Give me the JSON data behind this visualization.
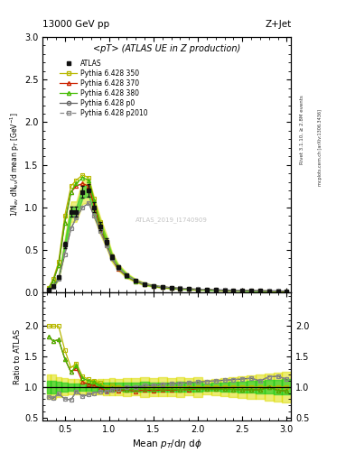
{
  "title_top": "13000 GeV pp",
  "title_right": "Z+Jet",
  "plot_title": "<pT> (ATLAS UE in Z production)",
  "xlabel": "Mean $p_T$/d$\\eta$ d$\\phi$",
  "ylabel_main": "1/N$_{ev}$ dN$_{ev}$/d mean p$_T$ [GeV$^{-1}$]",
  "ylabel_ratio": "Ratio to ATLAS",
  "right_label1": "Rivet 3.1.10, ≥ 2.8M events",
  "right_label2": "mcplots.cern.ch [arXiv:1306.3436]",
  "watermark": "ATLAS_2019_I1740909",
  "atlas_x": [
    0.32,
    0.37,
    0.43,
    0.5,
    0.57,
    0.63,
    0.7,
    0.77,
    0.83,
    0.9,
    0.97,
    1.03,
    1.1,
    1.2,
    1.3,
    1.4,
    1.5,
    1.6,
    1.7,
    1.8,
    1.9,
    2.0,
    2.1,
    2.2,
    2.3,
    2.4,
    2.5,
    2.6,
    2.7,
    2.8,
    2.9,
    3.0
  ],
  "atlas_y": [
    0.03,
    0.08,
    0.18,
    0.56,
    0.95,
    0.95,
    1.18,
    1.2,
    1.0,
    0.78,
    0.6,
    0.42,
    0.3,
    0.2,
    0.14,
    0.1,
    0.08,
    0.065,
    0.055,
    0.048,
    0.042,
    0.037,
    0.033,
    0.03,
    0.027,
    0.025,
    0.023,
    0.021,
    0.02,
    0.018,
    0.017,
    0.016
  ],
  "atlas_yerr": [
    0.003,
    0.008,
    0.015,
    0.04,
    0.06,
    0.06,
    0.07,
    0.07,
    0.06,
    0.05,
    0.04,
    0.03,
    0.02,
    0.015,
    0.01,
    0.008,
    0.006,
    0.005,
    0.004,
    0.004,
    0.003,
    0.003,
    0.002,
    0.002,
    0.002,
    0.002,
    0.002,
    0.002,
    0.002,
    0.002,
    0.002,
    0.002
  ],
  "py350_x": [
    0.32,
    0.37,
    0.43,
    0.5,
    0.57,
    0.63,
    0.7,
    0.77,
    0.83,
    0.9,
    0.97,
    1.03,
    1.1,
    1.2,
    1.3,
    1.4,
    1.5,
    1.6,
    1.7,
    1.8,
    1.9,
    2.0,
    2.1,
    2.2,
    2.3,
    2.4,
    2.5,
    2.6,
    2.7,
    2.8,
    2.9,
    3.0
  ],
  "py350_y": [
    0.06,
    0.16,
    0.36,
    0.9,
    1.25,
    1.32,
    1.38,
    1.35,
    1.1,
    0.83,
    0.6,
    0.43,
    0.3,
    0.2,
    0.14,
    0.1,
    0.08,
    0.065,
    0.055,
    0.048,
    0.042,
    0.037,
    0.033,
    0.03,
    0.027,
    0.025,
    0.023,
    0.021,
    0.02,
    0.018,
    0.017,
    0.016
  ],
  "py370_x": [
    0.32,
    0.37,
    0.43,
    0.5,
    0.57,
    0.63,
    0.7,
    0.77,
    0.83,
    0.9,
    0.97,
    1.03,
    1.1,
    1.2,
    1.3,
    1.4,
    1.5,
    1.6,
    1.7,
    1.8,
    1.9,
    2.0,
    2.1,
    2.2,
    2.3,
    2.4,
    2.5,
    2.6,
    2.7,
    2.8,
    2.9,
    3.0
  ],
  "py370_y": [
    0.055,
    0.14,
    0.32,
    0.82,
    1.18,
    1.25,
    1.28,
    1.25,
    1.02,
    0.77,
    0.56,
    0.4,
    0.28,
    0.19,
    0.13,
    0.095,
    0.075,
    0.062,
    0.052,
    0.046,
    0.04,
    0.036,
    0.032,
    0.029,
    0.026,
    0.024,
    0.022,
    0.02,
    0.019,
    0.018,
    0.016,
    0.015
  ],
  "py380_x": [
    0.32,
    0.37,
    0.43,
    0.5,
    0.57,
    0.63,
    0.7,
    0.77,
    0.83,
    0.9,
    0.97,
    1.03,
    1.1,
    1.2,
    1.3,
    1.4,
    1.5,
    1.6,
    1.7,
    1.8,
    1.9,
    2.0,
    2.1,
    2.2,
    2.3,
    2.4,
    2.5,
    2.6,
    2.7,
    2.8,
    2.9,
    3.0
  ],
  "py380_y": [
    0.055,
    0.14,
    0.32,
    0.82,
    1.18,
    1.28,
    1.35,
    1.32,
    1.08,
    0.8,
    0.58,
    0.41,
    0.29,
    0.19,
    0.135,
    0.097,
    0.077,
    0.063,
    0.053,
    0.046,
    0.041,
    0.036,
    0.032,
    0.029,
    0.026,
    0.024,
    0.022,
    0.02,
    0.019,
    0.018,
    0.016,
    0.015
  ],
  "pyp0_x": [
    0.32,
    0.37,
    0.43,
    0.5,
    0.57,
    0.63,
    0.7,
    0.77,
    0.83,
    0.9,
    0.97,
    1.03,
    1.1,
    1.2,
    1.3,
    1.4,
    1.5,
    1.6,
    1.7,
    1.8,
    1.9,
    2.0,
    2.1,
    2.2,
    2.3,
    2.4,
    2.5,
    2.6,
    2.7,
    2.8,
    2.9,
    3.0
  ],
  "pyp0_y": [
    0.025,
    0.065,
    0.16,
    0.45,
    0.75,
    0.88,
    1.0,
    1.05,
    0.9,
    0.72,
    0.55,
    0.4,
    0.29,
    0.2,
    0.14,
    0.102,
    0.082,
    0.068,
    0.058,
    0.051,
    0.045,
    0.04,
    0.036,
    0.033,
    0.03,
    0.028,
    0.026,
    0.024,
    0.022,
    0.021,
    0.02,
    0.018
  ],
  "pyp2010_x": [
    0.32,
    0.37,
    0.43,
    0.5,
    0.57,
    0.63,
    0.7,
    0.77,
    0.83,
    0.9,
    0.97,
    1.03,
    1.1,
    1.2,
    1.3,
    1.4,
    1.5,
    1.6,
    1.7,
    1.8,
    1.9,
    2.0,
    2.1,
    2.2,
    2.3,
    2.4,
    2.5,
    2.6,
    2.7,
    2.8,
    2.9,
    3.0
  ],
  "pyp2010_y": [
    0.025,
    0.065,
    0.16,
    0.45,
    0.75,
    0.88,
    1.0,
    1.05,
    0.9,
    0.72,
    0.55,
    0.4,
    0.29,
    0.2,
    0.14,
    0.102,
    0.082,
    0.068,
    0.058,
    0.051,
    0.045,
    0.04,
    0.036,
    0.033,
    0.03,
    0.028,
    0.026,
    0.024,
    0.022,
    0.021,
    0.02,
    0.018
  ],
  "color_350": "#b8b800",
  "color_370": "#cc2200",
  "color_380": "#44bb00",
  "color_p0": "#666666",
  "color_p2010": "#888888",
  "color_atlas": "#111111",
  "band_inner_color": "#22cc22",
  "band_outer_color": "#dddd00",
  "xlim": [
    0.25,
    3.05
  ],
  "ylim_main": [
    0.0,
    3.0
  ],
  "ylim_ratio": [
    0.45,
    2.55
  ],
  "bg_color": "#ffffff"
}
